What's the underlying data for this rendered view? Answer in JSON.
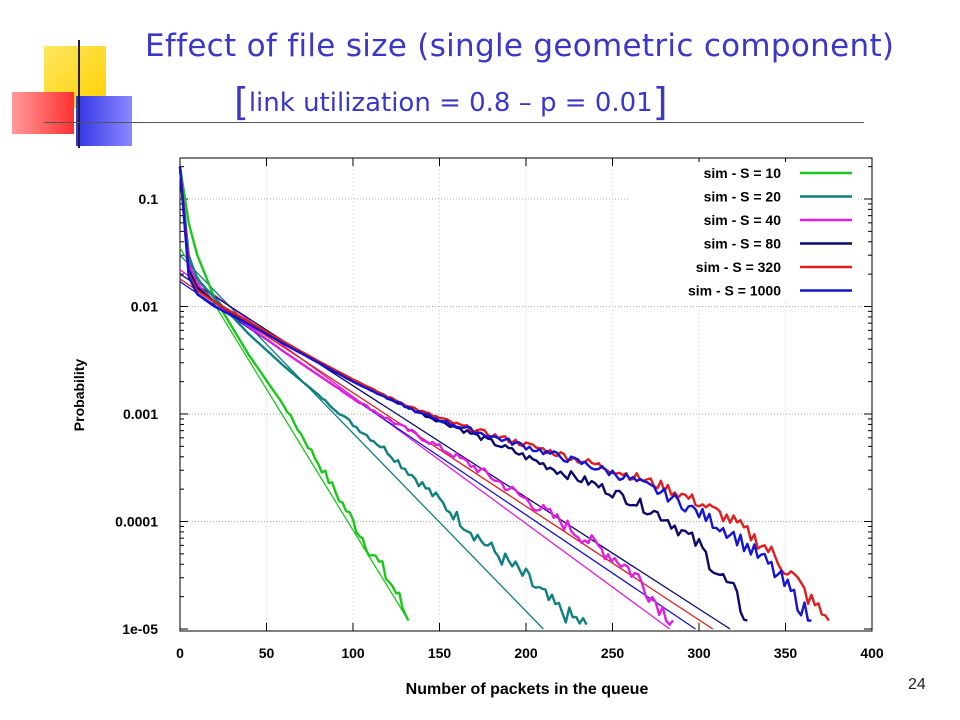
{
  "slide": {
    "title_line1": "Effect of file size (single geometric component)",
    "title_line2_open": "[",
    "title_line2_text": "link utilization = 0.8 – p = 0.01",
    "title_line2_close": "]",
    "slide_number": "24"
  },
  "colors": {
    "title": "#3b37c9",
    "deco_yellow": "#ffd400",
    "deco_red": "#ff4040",
    "deco_blue": "#2a2ad8"
  },
  "chart_data": {
    "type": "line",
    "xlabel": "Number of packets in the queue",
    "ylabel": "Probability",
    "xlim": [
      0,
      400
    ],
    "ylim": [
      1e-05,
      0.25
    ],
    "yscale": "log",
    "xticks": [
      0,
      50,
      100,
      150,
      200,
      250,
      300,
      350,
      400
    ],
    "yticks": [
      {
        "value": 0.1,
        "label": "0.1"
      },
      {
        "value": 0.01,
        "label": "0.01"
      },
      {
        "value": 0.001,
        "label": "0.001"
      },
      {
        "value": 0.0001,
        "label": "0.0001"
      },
      {
        "value": 1e-05,
        "label": "1e-05"
      }
    ],
    "grid": true,
    "legend_position": "top-right",
    "series": [
      {
        "name": "sim - S = 10",
        "color": "#19c819",
        "x": [
          0,
          5,
          10,
          20,
          40,
          60,
          80,
          100,
          115,
          125,
          132
        ],
        "y": [
          0.2,
          0.06,
          0.03,
          0.012,
          0.0035,
          0.0012,
          0.00035,
          0.0001,
          4e-05,
          2.2e-05,
          1.2e-05
        ]
      },
      {
        "name": "sim - S = 20",
        "color": "#0f7f7f",
        "x": [
          0,
          5,
          10,
          20,
          40,
          60,
          80,
          100,
          120,
          140,
          160,
          180,
          200,
          215,
          225,
          235
        ],
        "y": [
          0.2,
          0.03,
          0.018,
          0.012,
          0.0055,
          0.0028,
          0.0015,
          0.0008,
          0.00045,
          0.00022,
          0.00011,
          5.5e-05,
          3e-05,
          1.7e-05,
          1.3e-05,
          1.1e-05
        ]
      },
      {
        "name": "sim - S = 40",
        "color": "#e11ee1",
        "x": [
          0,
          5,
          10,
          20,
          40,
          60,
          80,
          100,
          120,
          140,
          160,
          180,
          200,
          220,
          240,
          255,
          265,
          275,
          285
        ],
        "y": [
          0.2,
          0.025,
          0.016,
          0.011,
          0.0065,
          0.0038,
          0.0023,
          0.0014,
          0.0009,
          0.0006,
          0.0004,
          0.00026,
          0.00016,
          0.0001,
          6e-05,
          4.2e-05,
          3e-05,
          1.8e-05,
          1.2e-05
        ]
      },
      {
        "name": "sim - S = 80",
        "color": "#0a0a6a",
        "x": [
          0,
          5,
          10,
          20,
          40,
          60,
          80,
          100,
          120,
          140,
          160,
          180,
          200,
          220,
          240,
          260,
          280,
          300,
          310,
          320,
          328
        ],
        "y": [
          0.2,
          0.022,
          0.015,
          0.011,
          0.007,
          0.0045,
          0.003,
          0.002,
          0.0014,
          0.001,
          0.00075,
          0.00055,
          0.0004,
          0.00029,
          0.00022,
          0.00016,
          0.00011,
          6e-05,
          3.5e-05,
          2.2e-05,
          1.2e-05
        ]
      },
      {
        "name": "sim - S = 320",
        "color": "#e11e1e",
        "x": [
          0,
          5,
          10,
          20,
          40,
          60,
          80,
          100,
          120,
          140,
          160,
          180,
          200,
          220,
          240,
          260,
          280,
          300,
          320,
          340,
          355,
          365,
          375
        ],
        "y": [
          0.2,
          0.02,
          0.014,
          0.011,
          0.0072,
          0.0047,
          0.0031,
          0.0021,
          0.00145,
          0.00105,
          0.0008,
          0.00064,
          0.00052,
          0.00042,
          0.00034,
          0.00027,
          0.00021,
          0.00015,
          0.0001,
          5.5e-05,
          3e-05,
          1.8e-05,
          1.2e-05
        ]
      },
      {
        "name": "sim - S = 1000",
        "color": "#1414d2",
        "x": [
          0,
          5,
          10,
          20,
          40,
          60,
          80,
          100,
          120,
          140,
          160,
          180,
          200,
          220,
          240,
          260,
          280,
          300,
          320,
          340,
          355,
          365
        ],
        "y": [
          0.2,
          0.019,
          0.013,
          0.01,
          0.0068,
          0.0045,
          0.003,
          0.002,
          0.0014,
          0.001,
          0.00078,
          0.00062,
          0.0005,
          0.0004,
          0.00032,
          0.00025,
          0.00018,
          0.00012,
          7.5e-05,
          4e-05,
          2e-05,
          1.2e-05
        ]
      }
    ],
    "fitted_lines": [
      {
        "color": "#19c819",
        "x": [
          0,
          132
        ],
        "y": [
          0.035,
          1.2e-05
        ]
      },
      {
        "color": "#0f7f7f",
        "x": [
          0,
          210
        ],
        "y": [
          0.03,
          1e-05
        ]
      },
      {
        "color": "#e11ee1",
        "x": [
          0,
          283
        ],
        "y": [
          0.022,
          1e-05
        ]
      },
      {
        "color": "#0a0a6a",
        "x": [
          0,
          318
        ],
        "y": [
          0.02,
          1e-05
        ]
      },
      {
        "color": "#e11e1e",
        "x": [
          0,
          308
        ],
        "y": [
          0.018,
          1e-05
        ]
      },
      {
        "color": "#1414d2",
        "x": [
          0,
          298
        ],
        "y": [
          0.017,
          1e-05
        ]
      }
    ]
  }
}
